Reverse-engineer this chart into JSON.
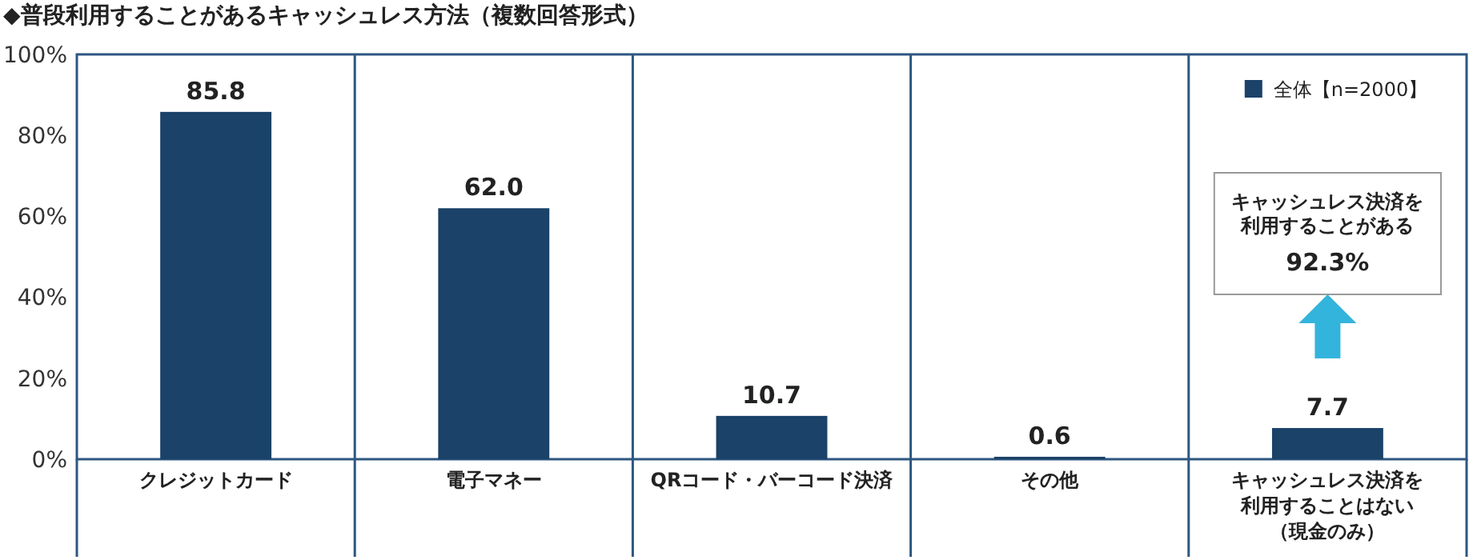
{
  "chart_data": {
    "type": "bar",
    "title": "◆普段利用することがあるキャッシュレス方法（複数回答形式）",
    "categories": [
      "クレジットカード",
      "電子マネー",
      "QRコード・バーコード決済",
      "その他",
      "キャッシュレス決済を利用することはない（現金のみ）"
    ],
    "series": [
      {
        "name": "全体【n=2000】",
        "color": "#1b4268",
        "values": [
          85.8,
          62.0,
          10.7,
          0.6,
          7.7
        ]
      }
    ],
    "value_labels": [
      "85.8",
      "62.0",
      "10.7",
      "0.6",
      "7.7"
    ],
    "ylim": [
      0,
      100
    ],
    "yticks": [
      {
        "value": 0,
        "label": "0%"
      },
      {
        "value": 20,
        "label": "20%"
      },
      {
        "value": 40,
        "label": "40%"
      },
      {
        "value": 60,
        "label": "60%"
      },
      {
        "value": 80,
        "label": "80%"
      },
      {
        "value": 100,
        "label": "100%"
      }
    ],
    "grid": false,
    "legend": "top right",
    "annotations": [
      "キャッシュレス決済を利用することがある",
      "92.3%"
    ]
  }
}
